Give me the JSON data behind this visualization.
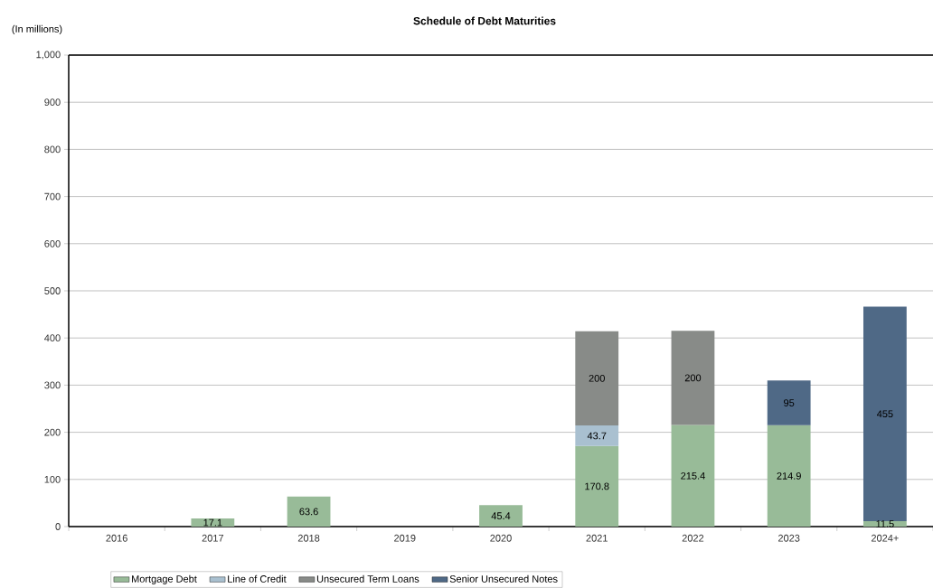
{
  "chart_data": {
    "type": "bar",
    "title": "Schedule of Debt Maturities",
    "ylabel": "(In millions)",
    "categories": [
      "2016",
      "2017",
      "2018",
      "2019",
      "2020",
      "2021",
      "2022",
      "2023",
      "2024+"
    ],
    "stacked": true,
    "series": [
      {
        "name": "Mortgage Debt",
        "color": "#98bb98",
        "values": [
          null,
          17.1,
          63.6,
          null,
          45.4,
          170.8,
          215.4,
          214.9,
          11.5
        ]
      },
      {
        "name": "Line of Credit",
        "color": "#a9c0d0",
        "values": [
          null,
          null,
          null,
          null,
          null,
          43.7,
          null,
          null,
          null
        ]
      },
      {
        "name": "Unsecured Term Loans",
        "color": "#888b88",
        "values": [
          null,
          null,
          null,
          null,
          null,
          200,
          200,
          null,
          null
        ]
      },
      {
        "name": "Senior Unsecured Notes",
        "color": "#4f6986",
        "values": [
          null,
          null,
          null,
          null,
          null,
          null,
          null,
          95,
          455
        ]
      }
    ],
    "ylim": [
      0,
      1000
    ],
    "yticks": [
      0,
      100,
      200,
      300,
      400,
      500,
      600,
      700,
      800,
      {
        "value": 900,
        "label": "900"
      },
      {
        "value": 1000,
        "label": "1,000"
      }
    ],
    "grid": "y",
    "legend": "bottom",
    "data_labels": true
  }
}
